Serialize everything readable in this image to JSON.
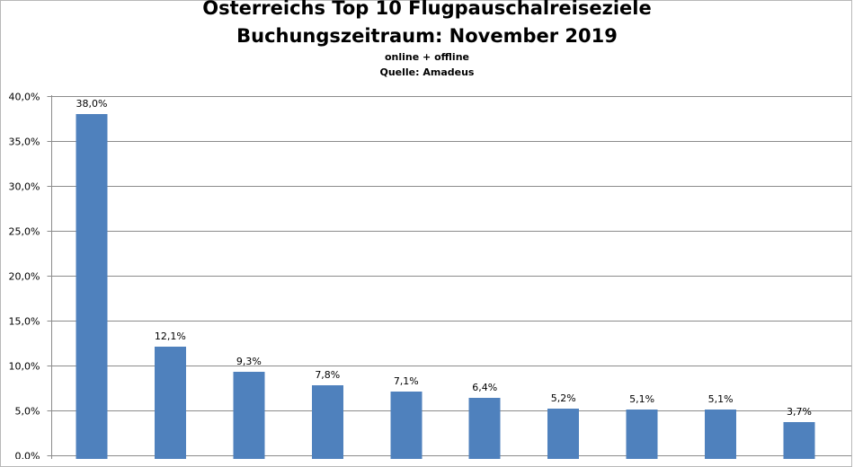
{
  "chart_data": {
    "type": "bar",
    "title_line1": "Österreichs Top 10 Flugpauschalreiseziele",
    "title_line2": "Buchungszeitraum: November 2019",
    "subtitle_line1": "online + offline",
    "subtitle_line2": "Quelle: Amadeus",
    "categories": [
      "",
      "",
      "",
      "",
      "",
      "",
      "",
      "",
      "",
      ""
    ],
    "values": [
      38.0,
      12.1,
      9.3,
      7.8,
      7.1,
      6.4,
      5.2,
      5.1,
      5.1,
      3.7
    ],
    "data_labels": [
      "38,0%",
      "12,1%",
      "9,3%",
      "7,8%",
      "7,1%",
      "6,4%",
      "5,2%",
      "5,1%",
      "5,1%",
      "3,7%"
    ],
    "y_ticks": [
      "0,0%",
      "5,0%",
      "10,0%",
      "15,0%",
      "20,0%",
      "25,0%",
      "30,0%",
      "35,0%",
      "40,0%"
    ],
    "ylim": [
      0,
      40
    ],
    "xlabel": "",
    "ylabel": "",
    "grid": true,
    "bar_color": "#4f81bd"
  }
}
